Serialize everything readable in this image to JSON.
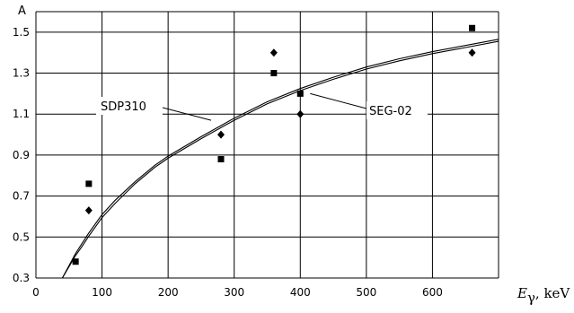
{
  "chart_data": {
    "type": "scatter",
    "ylabel": "A",
    "xlabel_symbol": "E",
    "xlabel_sub": "γ",
    "xlabel_unit": ", keV",
    "xlim": [
      0,
      700
    ],
    "ylim": [
      0.3,
      1.6
    ],
    "x_ticks": [
      0,
      100,
      200,
      300,
      400,
      500,
      600
    ],
    "y_ticks": [
      0.3,
      0.5,
      0.7,
      0.9,
      1.1,
      1.3,
      1.5
    ],
    "grid": true,
    "curves": [
      {
        "label": "SDP310",
        "x": [
          40,
          50,
          60,
          70,
          80,
          100,
          120,
          150,
          180,
          200,
          250,
          300,
          350,
          400,
          450,
          500,
          550,
          600,
          650,
          700
        ],
        "y": [
          0.3,
          0.36,
          0.42,
          0.47,
          0.52,
          0.61,
          0.68,
          0.77,
          0.85,
          0.895,
          0.99,
          1.08,
          1.16,
          1.225,
          1.28,
          1.33,
          1.37,
          1.405,
          1.435,
          1.465
        ]
      },
      {
        "label": "SEG-02",
        "x": [
          40,
          50,
          60,
          70,
          80,
          100,
          120,
          150,
          180,
          200,
          250,
          300,
          350,
          400,
          450,
          500,
          550,
          600,
          650,
          700
        ],
        "y": [
          0.3,
          0.355,
          0.41,
          0.455,
          0.505,
          0.595,
          0.665,
          0.76,
          0.84,
          0.885,
          0.98,
          1.07,
          1.15,
          1.215,
          1.27,
          1.32,
          1.36,
          1.395,
          1.425,
          1.455
        ]
      }
    ],
    "series": [
      {
        "marker": "square",
        "x": [
          60,
          80,
          280,
          360,
          400,
          660
        ],
        "y": [
          0.38,
          0.76,
          0.88,
          1.3,
          1.2,
          1.52
        ]
      },
      {
        "marker": "diamond",
        "x": [
          80,
          280,
          360,
          400,
          660
        ],
        "y": [
          0.63,
          1.0,
          1.4,
          1.1,
          1.4
        ]
      }
    ]
  }
}
